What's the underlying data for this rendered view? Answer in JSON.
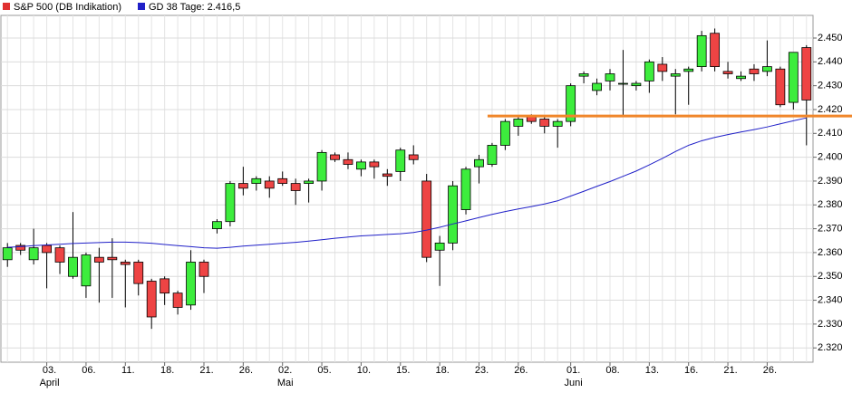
{
  "chart_data": {
    "type": "candlestick",
    "categories": [
      null,
      null,
      null,
      "03.",
      null,
      null,
      "06.",
      null,
      null,
      "11.",
      null,
      null,
      "18.",
      null,
      null,
      "21.",
      null,
      null,
      "26.",
      null,
      null,
      "02.",
      null,
      null,
      "05.",
      null,
      null,
      "10.",
      null,
      null,
      "15.",
      null,
      null,
      "18.",
      null,
      null,
      "23.",
      null,
      null,
      "26.",
      null,
      null,
      null,
      "01.",
      null,
      null,
      "08.",
      null,
      null,
      "13.",
      null,
      null,
      "16.",
      null,
      null,
      "21.",
      null,
      null,
      "26.",
      null,
      null,
      null
    ],
    "month_labels": [
      {
        "index": 3,
        "label": "April"
      },
      {
        "index": 21,
        "label": "Mai"
      },
      {
        "index": 43,
        "label": "Juni"
      }
    ],
    "series": [
      {
        "name": "S&P 500 (DB Indikation)",
        "color": "#e03030",
        "up_color": "#3ded3d",
        "down_color": "#ee4444",
        "open": [
          2357,
          2363,
          2357,
          2363,
          2362,
          2350,
          2346,
          2358,
          2358,
          2356,
          2356,
          2348,
          2349,
          2343,
          2338,
          2356,
          2370,
          2373,
          2389,
          2389,
          2390,
          2391,
          2389,
          2389,
          2390,
          2401,
          2399,
          2395,
          2398,
          2393,
          2394,
          2401,
          2390,
          2361,
          2364,
          2378,
          2396,
          2397,
          2405,
          2413,
          2417,
          2416,
          2413,
          2415,
          2434,
          2428,
          2432,
          2431,
          2430,
          2432,
          2439,
          2434,
          2436,
          2438,
          2452,
          2436,
          2433,
          2437,
          2436,
          2437,
          2423,
          2446
        ],
        "high": [
          2364,
          2364,
          2370,
          2364,
          2363,
          2377,
          2360,
          2362,
          2366,
          2357,
          2357,
          2349,
          2350,
          2344,
          2361,
          2357,
          2374,
          2390,
          2396,
          2392,
          2392,
          2394,
          2391,
          2391,
          2403,
          2402,
          2402,
          2399,
          2399,
          2395,
          2404,
          2405,
          2393,
          2367,
          2390,
          2396,
          2401,
          2406,
          2416,
          2417,
          2418,
          2417,
          2416,
          2431,
          2436,
          2433,
          2437,
          2445,
          2432,
          2441,
          2442,
          2437,
          2438,
          2453,
          2454,
          2440,
          2436,
          2439,
          2449,
          2438,
          2444,
          2447
        ],
        "low": [
          2354,
          2359,
          2355,
          2345,
          2351,
          2349,
          2341,
          2339,
          2341,
          2337,
          2342,
          2328,
          2338,
          2334,
          2336,
          2343,
          2368,
          2371,
          2384,
          2386,
          2383,
          2388,
          2380,
          2381,
          2386,
          2398,
          2395,
          2392,
          2391,
          2388,
          2390,
          2397,
          2356,
          2346,
          2361,
          2376,
          2389,
          2396,
          2403,
          2409,
          2414,
          2410,
          2404,
          2413,
          2431,
          2426,
          2428,
          2417,
          2428,
          2427,
          2432,
          2418,
          2422,
          2436,
          2436,
          2433,
          2432,
          2432,
          2434,
          2421,
          2420,
          2405
        ],
        "close": [
          2362,
          2361,
          2362,
          2360,
          2356,
          2358,
          2359,
          2356,
          2357,
          2355,
          2347,
          2333,
          2343,
          2337,
          2356,
          2350,
          2373,
          2389,
          2387,
          2391,
          2387,
          2389,
          2386,
          2390,
          2402,
          2399,
          2397,
          2398,
          2396,
          2392,
          2403,
          2399,
          2358,
          2364,
          2388,
          2395,
          2399,
          2405,
          2415,
          2416,
          2415,
          2413,
          2415,
          2430,
          2435,
          2431,
          2435,
          2431,
          2431,
          2440,
          2436,
          2435,
          2437,
          2451,
          2438,
          2435,
          2434,
          2435,
          2438,
          2422,
          2444,
          2424
        ]
      },
      {
        "name": "GD 38 Tage: 2.416,5",
        "type": "line",
        "color": "#2020c8",
        "values": [
          2362.2,
          2362.5,
          2362.9,
          2363.2,
          2363.5,
          2363.8,
          2364.0,
          2364.2,
          2364.4,
          2364.4,
          2364.2,
          2363.9,
          2363.4,
          2362.9,
          2362.5,
          2362.0,
          2361.8,
          2362.2,
          2362.7,
          2363.1,
          2363.5,
          2363.9,
          2364.3,
          2364.8,
          2365.4,
          2366.0,
          2366.5,
          2367.0,
          2367.3,
          2367.6,
          2367.9,
          2368.4,
          2369.4,
          2370.6,
          2372.0,
          2373.3,
          2374.7,
          2376.0,
          2377.2,
          2378.3,
          2379.3,
          2380.4,
          2381.7,
          2383.7,
          2385.7,
          2387.8,
          2389.8,
          2392.0,
          2394.2,
          2396.8,
          2399.5,
          2402.4,
          2405.0,
          2406.9,
          2408.3,
          2409.5,
          2410.6,
          2411.6,
          2412.7,
          2414.0,
          2415.3,
          2416.5
        ]
      }
    ],
    "hline": {
      "value": 2417.3,
      "start_index": 37,
      "color": "#f0862a"
    },
    "ylim": [
      2314,
      2459.5
    ],
    "yticks": [
      {
        "value": 2320,
        "label": "2.320"
      },
      {
        "value": 2330,
        "label": "2.330"
      },
      {
        "value": 2340,
        "label": "2.340"
      },
      {
        "value": 2350,
        "label": "2.350"
      },
      {
        "value": 2360,
        "label": "2.360"
      },
      {
        "value": 2370,
        "label": "2.370"
      },
      {
        "value": 2380,
        "label": "2.380"
      },
      {
        "value": 2390,
        "label": "2.390"
      },
      {
        "value": 2400,
        "label": "2.400"
      },
      {
        "value": 2410,
        "label": "2.410"
      },
      {
        "value": 2420,
        "label": "2.420"
      },
      {
        "value": 2430,
        "label": "2.430"
      },
      {
        "value": 2440,
        "label": "2.440"
      },
      {
        "value": 2450,
        "label": "2.450"
      }
    ],
    "grid": true
  }
}
